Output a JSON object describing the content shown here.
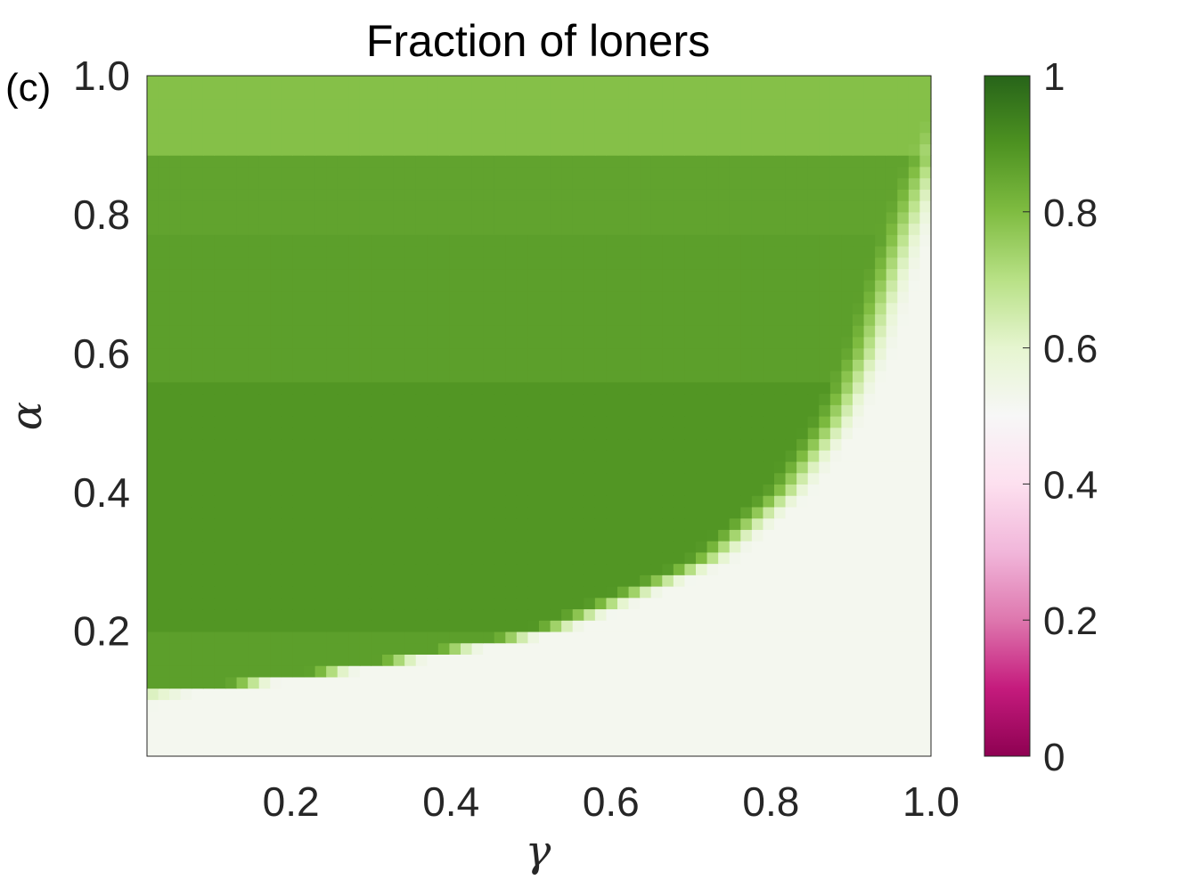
{
  "panel_label": "(c)",
  "chart_data": {
    "type": "heatmap",
    "title": "Fraction of loners",
    "xlabel": "γ",
    "ylabel": "α",
    "xlim": [
      0.02,
      1.0
    ],
    "ylim": [
      0.02,
      1.0
    ],
    "x_ticks": [
      0.2,
      0.4,
      0.6,
      0.8,
      1.0
    ],
    "x_tick_labels": [
      "0.2",
      "0.4",
      "0.6",
      "0.8",
      "1.0"
    ],
    "y_ticks": [
      0.2,
      0.4,
      0.6,
      0.8,
      1.0
    ],
    "y_tick_labels": [
      "0.2",
      "0.4",
      "0.6",
      "0.8",
      "1.0"
    ],
    "colorbar": {
      "range": [
        0,
        1
      ],
      "ticks": [
        0,
        0.2,
        0.4,
        0.6,
        0.8,
        1
      ],
      "tick_labels": [
        "0",
        "0.2",
        "0.4",
        "0.6",
        "0.8",
        "1"
      ],
      "colormap": [
        {
          "value": 0.0,
          "color": "#8e0152"
        },
        {
          "value": 0.1,
          "color": "#c51b7d"
        },
        {
          "value": 0.2,
          "color": "#de77ae"
        },
        {
          "value": 0.3,
          "color": "#f1b6da"
        },
        {
          "value": 0.4,
          "color": "#fde0ef"
        },
        {
          "value": 0.5,
          "color": "#f7f7f7"
        },
        {
          "value": 0.6,
          "color": "#e6f5d0"
        },
        {
          "value": 0.7,
          "color": "#b8e186"
        },
        {
          "value": 0.8,
          "color": "#7fbc41"
        },
        {
          "value": 0.9,
          "color": "#4d9221"
        },
        {
          "value": 1.0,
          "color": "#276419"
        }
      ]
    },
    "alpha_bands": [
      {
        "alpha_min": 0.89,
        "alpha_max": 1.0,
        "value": 0.79
      },
      {
        "alpha_min": 0.77,
        "alpha_max": 0.89,
        "value": 0.86
      },
      {
        "alpha_min": 0.56,
        "alpha_max": 0.77,
        "value": 0.87
      },
      {
        "alpha_min": 0.2,
        "alpha_max": 0.56,
        "value": 0.89
      },
      {
        "alpha_min": 0.11,
        "alpha_max": 0.2,
        "value": 0.87
      },
      {
        "alpha_min": 0.02,
        "alpha_max": 0.11,
        "value": 0.63
      }
    ],
    "boundary_gamma_by_alpha": [
      {
        "alpha": 1.0,
        "gamma": 1.05
      },
      {
        "alpha": 0.85,
        "gamma": 0.99
      },
      {
        "alpha": 0.75,
        "gamma": 0.96
      },
      {
        "alpha": 0.6,
        "gamma": 0.92
      },
      {
        "alpha": 0.5,
        "gamma": 0.88
      },
      {
        "alpha": 0.4,
        "gamma": 0.82
      },
      {
        "alpha": 0.3,
        "gamma": 0.72
      },
      {
        "alpha": 0.2,
        "gamma": 0.52
      },
      {
        "alpha": 0.15,
        "gamma": 0.3
      },
      {
        "alpha": 0.11,
        "gamma": 0.05
      },
      {
        "alpha": 0.0,
        "gamma": -0.3
      }
    ],
    "outside_region_value": 0.52,
    "grid": false
  }
}
